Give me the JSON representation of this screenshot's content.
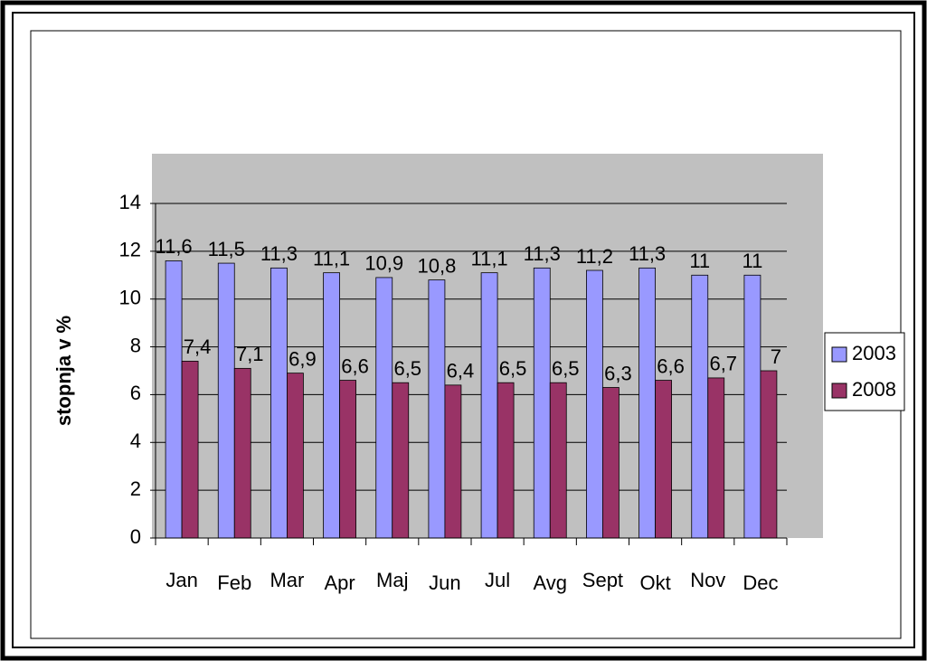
{
  "chart_data": {
    "type": "bar",
    "y_label": "stopnja  v %",
    "categories": [
      "Jan",
      "Feb",
      "Mar",
      "Apr",
      "Maj",
      "Jun",
      "Jul",
      "Avg",
      "Sept",
      "Okt",
      "Nov",
      "Dec"
    ],
    "series": [
      {
        "name": "2003",
        "color": "#9999ff",
        "values": [
          11.6,
          11.5,
          11.3,
          11.1,
          10.9,
          10.8,
          11.1,
          11.3,
          11.2,
          11.3,
          11,
          11
        ],
        "value_labels": [
          "11,6",
          "11,5",
          "11,3",
          "11,1",
          "10,9",
          "10,8",
          "11,1",
          "11,3",
          "11,2",
          "11,3",
          "11",
          "11"
        ]
      },
      {
        "name": "2008",
        "color": "#993366",
        "values": [
          7.4,
          7.1,
          6.9,
          6.6,
          6.5,
          6.4,
          6.5,
          6.5,
          6.3,
          6.6,
          6.7,
          7
        ],
        "value_labels": [
          "7,4",
          "7,1",
          "6,9",
          "6,6",
          "6,5",
          "6,4",
          "6,5",
          "6,5",
          "6,3",
          "6,6",
          "6,7",
          "7"
        ]
      }
    ],
    "ylim": [
      0,
      14
    ],
    "yticks": [
      0,
      2,
      4,
      6,
      8,
      10,
      12,
      14
    ],
    "grid": true,
    "legend": "right"
  }
}
